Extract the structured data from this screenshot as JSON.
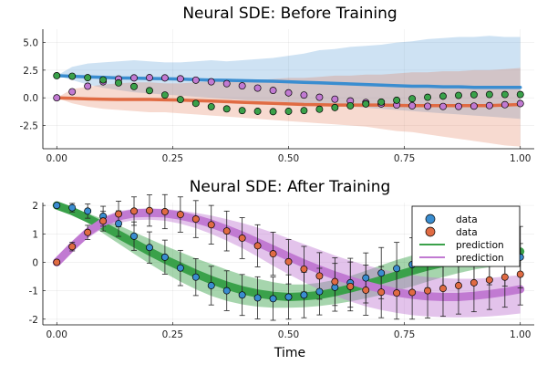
{
  "chart_data": [
    {
      "type": "line",
      "title": "Neural SDE: Before Training",
      "xlabel": "",
      "ylabel": "",
      "xlim": [
        -0.03,
        1.03
      ],
      "ylim": [
        -4.6,
        6.2
      ],
      "xticks": [
        0,
        0.25,
        0.5,
        0.75,
        1
      ],
      "xtick_labels": [
        "0.00",
        "0.25",
        "0.50",
        "0.75",
        "1.00"
      ],
      "yticks": [
        -2.5,
        0,
        2.5,
        5
      ],
      "ytick_labels": [
        "-2.5",
        "0.0",
        "2.5",
        "5.0"
      ],
      "grid": true,
      "colors": {
        "blue": "#3a8dd0",
        "orange": "#e06b43",
        "green": "#3aa14a",
        "purple": "#c17ad2"
      },
      "x": [
        0,
        0.0333,
        0.0667,
        0.1,
        0.1333,
        0.1667,
        0.2,
        0.2333,
        0.2667,
        0.3,
        0.3333,
        0.3667,
        0.4,
        0.4333,
        0.4667,
        0.5,
        0.5333,
        0.5667,
        0.6,
        0.6333,
        0.6667,
        0.7,
        0.7333,
        0.7667,
        0.8,
        0.8333,
        0.8667,
        0.9,
        0.9333,
        0.9667,
        1
      ],
      "series": [
        {
          "color": "blue",
          "kind": "mean_band",
          "mean": [
            2.0,
            1.95,
            1.9,
            1.85,
            1.8,
            1.78,
            1.75,
            1.72,
            1.7,
            1.65,
            1.6,
            1.58,
            1.55,
            1.52,
            1.5,
            1.45,
            1.4,
            1.35,
            1.3,
            1.25,
            1.2,
            1.15,
            1.1,
            1.05,
            1.05,
            1.0,
            1.0,
            0.95,
            0.95,
            0.95,
            0.95
          ],
          "lower": [
            2.0,
            1.6,
            1.2,
            0.9,
            0.7,
            0.5,
            0.4,
            0.3,
            0.2,
            0.1,
            0.0,
            -0.1,
            -0.2,
            -0.3,
            -0.3,
            -0.4,
            -0.5,
            -0.6,
            -0.7,
            -0.8,
            -0.9,
            -1.0,
            -1.1,
            -1.2,
            -1.3,
            -1.4,
            -1.5,
            -1.6,
            -1.7,
            -1.8,
            -1.9
          ],
          "upper": [
            2.0,
            2.8,
            3.1,
            3.2,
            3.3,
            3.4,
            3.3,
            3.2,
            3.2,
            3.3,
            3.4,
            3.3,
            3.4,
            3.5,
            3.6,
            3.8,
            4.0,
            4.3,
            4.4,
            4.6,
            4.7,
            4.8,
            5.0,
            5.1,
            5.3,
            5.4,
            5.5,
            5.5,
            5.6,
            5.5,
            5.5
          ]
        },
        {
          "color": "orange",
          "kind": "mean_band",
          "mean": [
            0.0,
            -0.05,
            -0.1,
            -0.12,
            -0.15,
            -0.15,
            -0.15,
            -0.18,
            -0.2,
            -0.25,
            -0.3,
            -0.35,
            -0.4,
            -0.45,
            -0.5,
            -0.55,
            -0.6,
            -0.62,
            -0.65,
            -0.65,
            -0.65,
            -0.65,
            -0.68,
            -0.7,
            -0.7,
            -0.7,
            -0.7,
            -0.7,
            -0.7,
            -0.65,
            -0.6
          ],
          "lower": [
            0.0,
            -0.5,
            -0.8,
            -1.0,
            -1.1,
            -1.2,
            -1.3,
            -1.3,
            -1.4,
            -1.5,
            -1.6,
            -1.7,
            -1.8,
            -1.9,
            -2.0,
            -2.1,
            -2.2,
            -2.3,
            -2.4,
            -2.5,
            -2.6,
            -2.8,
            -3.0,
            -3.1,
            -3.3,
            -3.5,
            -3.7,
            -3.9,
            -4.1,
            -4.3,
            -4.4
          ],
          "upper": [
            0.0,
            0.8,
            1.0,
            1.2,
            1.3,
            1.4,
            1.4,
            1.3,
            1.3,
            1.4,
            1.5,
            1.6,
            1.5,
            1.6,
            1.7,
            1.8,
            1.8,
            1.9,
            2.0,
            2.0,
            2.1,
            2.1,
            2.2,
            2.3,
            2.3,
            2.4,
            2.4,
            2.5,
            2.5,
            2.6,
            2.7
          ]
        },
        {
          "color": "purple",
          "kind": "points",
          "y": [
            0.0,
            0.55,
            1.05,
            1.45,
            1.7,
            1.8,
            1.82,
            1.8,
            1.72,
            1.6,
            1.45,
            1.28,
            1.08,
            0.88,
            0.67,
            0.45,
            0.25,
            0.05,
            -0.12,
            -0.28,
            -0.42,
            -0.55,
            -0.65,
            -0.72,
            -0.76,
            -0.78,
            -0.78,
            -0.75,
            -0.7,
            -0.62,
            -0.52
          ]
        },
        {
          "color": "green",
          "kind": "points",
          "y": [
            2.0,
            1.95,
            1.82,
            1.62,
            1.35,
            1.02,
            0.65,
            0.25,
            -0.15,
            -0.5,
            -0.8,
            -1.0,
            -1.15,
            -1.22,
            -1.25,
            -1.22,
            -1.15,
            -1.03,
            -0.88,
            -0.72,
            -0.55,
            -0.38,
            -0.22,
            -0.08,
            0.05,
            0.15,
            0.22,
            0.28,
            0.3,
            0.3,
            0.3
          ]
        }
      ]
    },
    {
      "type": "line",
      "title": "Neural SDE: After Training",
      "xlabel": "Time",
      "ylabel": "",
      "xlim": [
        -0.03,
        1.03
      ],
      "ylim": [
        -2.2,
        2.1
      ],
      "xticks": [
        0,
        0.25,
        0.5,
        0.75,
        1
      ],
      "xtick_labels": [
        "0.00",
        "0.25",
        "0.50",
        "0.75",
        "1.00"
      ],
      "yticks": [
        -2,
        -1,
        0,
        1,
        2
      ],
      "ytick_labels": [
        "-2",
        "-1",
        "0",
        "1",
        "2"
      ],
      "grid": true,
      "legend_position": "right",
      "colors": {
        "blue": "#3a8dd0",
        "orange": "#e06b43",
        "green": "#3aa14a",
        "purple": "#c17ad2"
      },
      "x": [
        0,
        0.0333,
        0.0667,
        0.1,
        0.1333,
        0.1667,
        0.2,
        0.2333,
        0.2667,
        0.3,
        0.3333,
        0.3667,
        0.4,
        0.4333,
        0.4667,
        0.5,
        0.5333,
        0.5667,
        0.6,
        0.6333,
        0.6667,
        0.7,
        0.7333,
        0.7667,
        0.8,
        0.8333,
        0.8667,
        0.9,
        0.9333,
        0.9667,
        1
      ],
      "legend": [
        {
          "label": "data",
          "color": "blue",
          "kind": "marker"
        },
        {
          "label": "data",
          "color": "orange",
          "kind": "marker"
        },
        {
          "label": "prediction",
          "color": "green",
          "kind": "line"
        },
        {
          "label": "prediction",
          "color": "purple",
          "kind": "line"
        }
      ],
      "series": [
        {
          "color": "green",
          "kind": "prediction",
          "mean": [
            2.0,
            1.8,
            1.55,
            1.28,
            0.98,
            0.68,
            0.38,
            0.1,
            -0.15,
            -0.4,
            -0.62,
            -0.82,
            -0.98,
            -1.1,
            -1.18,
            -1.22,
            -1.2,
            -1.15,
            -1.05,
            -0.92,
            -0.78,
            -0.62,
            -0.46,
            -0.3,
            -0.15,
            -0.02,
            0.1,
            0.2,
            0.28,
            0.34,
            0.38
          ],
          "lower": [
            2.0,
            1.7,
            1.38,
            1.02,
            0.66,
            0.3,
            -0.05,
            -0.38,
            -0.68,
            -0.95,
            -1.18,
            -1.36,
            -1.48,
            -1.56,
            -1.6,
            -1.6,
            -1.58,
            -1.54,
            -1.47,
            -1.38,
            -1.27,
            -1.15,
            -1.0,
            -0.85,
            -0.68,
            -0.52,
            -0.38,
            -0.26,
            -0.17,
            -0.1,
            -0.06
          ],
          "upper": [
            2.0,
            1.9,
            1.72,
            1.52,
            1.3,
            1.06,
            0.82,
            0.58,
            0.36,
            0.14,
            -0.06,
            -0.26,
            -0.44,
            -0.58,
            -0.7,
            -0.78,
            -0.78,
            -0.72,
            -0.62,
            -0.48,
            -0.3,
            -0.1,
            0.08,
            0.24,
            0.38,
            0.5,
            0.6,
            0.68,
            0.74,
            0.78,
            0.82
          ]
        },
        {
          "color": "purple",
          "kind": "prediction",
          "mean": [
            0.0,
            0.55,
            1.05,
            1.42,
            1.62,
            1.72,
            1.74,
            1.72,
            1.64,
            1.52,
            1.36,
            1.16,
            0.94,
            0.7,
            0.45,
            0.2,
            -0.04,
            -0.26,
            -0.46,
            -0.64,
            -0.8,
            -0.94,
            -1.06,
            -1.14,
            -1.2,
            -1.22,
            -1.22,
            -1.18,
            -1.12,
            -1.04,
            -0.95
          ],
          "lower": [
            0.0,
            0.4,
            0.85,
            1.2,
            1.38,
            1.48,
            1.5,
            1.46,
            1.36,
            1.2,
            1.0,
            0.76,
            0.5,
            0.2,
            -0.12,
            -0.42,
            -0.7,
            -0.96,
            -1.18,
            -1.38,
            -1.55,
            -1.68,
            -1.78,
            -1.86,
            -1.9,
            -1.93,
            -1.94,
            -1.93,
            -1.9,
            -1.86,
            -1.8
          ],
          "upper": [
            0.0,
            0.7,
            1.25,
            1.6,
            1.8,
            1.88,
            1.9,
            1.88,
            1.82,
            1.74,
            1.64,
            1.52,
            1.38,
            1.22,
            1.04,
            0.84,
            0.64,
            0.44,
            0.24,
            0.06,
            -0.1,
            -0.24,
            -0.36,
            -0.45,
            -0.52,
            -0.56,
            -0.58,
            -0.58,
            -0.55,
            -0.5,
            -0.45
          ]
        },
        {
          "color": "blue",
          "kind": "data_points",
          "errorbars": true,
          "y": [
            2.0,
            1.92,
            1.8,
            1.62,
            1.36,
            0.92,
            0.52,
            0.18,
            -0.2,
            -0.52,
            -0.82,
            -1.0,
            -1.15,
            -1.25,
            -1.28,
            -1.22,
            -1.15,
            -1.03,
            -0.88,
            -0.72,
            -0.55,
            -0.38,
            -0.22,
            -0.08,
            0.05,
            0.12,
            0.18,
            0.22,
            0.25,
            0.22,
            0.18
          ],
          "err_lo": [
            0.0,
            0.15,
            0.25,
            0.35,
            0.45,
            0.5,
            0.55,
            0.6,
            0.62,
            0.65,
            0.68,
            0.7,
            0.72,
            0.74,
            0.76,
            0.78,
            0.8,
            0.82,
            0.84,
            0.86,
            0.88,
            0.9,
            0.92,
            0.94,
            0.96,
            0.98,
            1.0,
            1.02,
            1.04,
            1.06,
            1.08
          ],
          "err_hi": [
            0.0,
            0.15,
            0.25,
            0.35,
            0.45,
            0.5,
            0.55,
            0.6,
            0.62,
            0.65,
            0.68,
            0.7,
            0.72,
            0.74,
            0.76,
            0.78,
            0.8,
            0.82,
            0.84,
            0.86,
            0.88,
            0.9,
            0.92,
            0.94,
            0.96,
            0.98,
            1.0,
            1.02,
            1.04,
            1.06,
            1.08
          ]
        },
        {
          "color": "orange",
          "kind": "data_points",
          "errorbars": true,
          "y": [
            0.0,
            0.55,
            1.05,
            1.45,
            1.7,
            1.8,
            1.82,
            1.78,
            1.68,
            1.52,
            1.32,
            1.1,
            0.85,
            0.58,
            0.3,
            0.02,
            -0.24,
            -0.48,
            -0.68,
            -0.85,
            -0.98,
            -1.05,
            -1.08,
            -1.06,
            -1.0,
            -0.92,
            -0.82,
            -0.72,
            -0.62,
            -0.52,
            -0.42
          ],
          "err_lo": [
            0.0,
            0.15,
            0.25,
            0.35,
            0.45,
            0.5,
            0.55,
            0.6,
            0.62,
            0.65,
            0.68,
            0.7,
            0.72,
            0.74,
            0.76,
            0.78,
            0.8,
            0.82,
            0.84,
            0.86,
            0.88,
            0.9,
            0.92,
            0.94,
            0.96,
            0.98,
            1.0,
            1.02,
            1.04,
            1.06,
            1.08
          ],
          "err_hi": [
            0.0,
            0.15,
            0.25,
            0.35,
            0.45,
            0.5,
            0.55,
            0.6,
            0.62,
            0.65,
            0.68,
            0.7,
            0.72,
            0.74,
            0.76,
            0.78,
            0.8,
            0.82,
            0.84,
            0.86,
            0.88,
            0.9,
            0.92,
            0.94,
            0.96,
            0.98,
            1.0,
            1.02,
            1.04,
            1.06,
            1.08
          ]
        }
      ]
    }
  ]
}
